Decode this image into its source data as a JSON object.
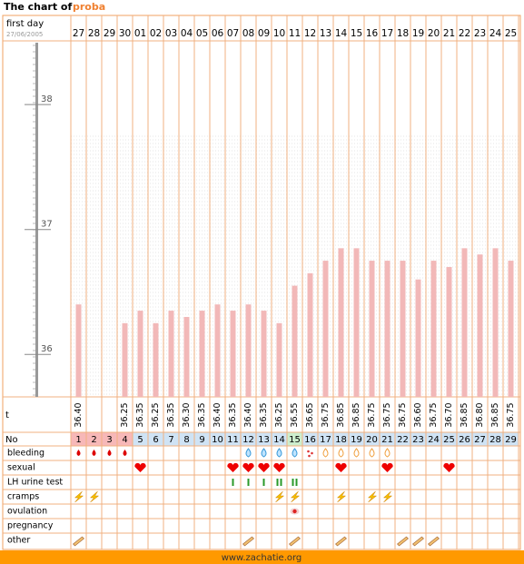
{
  "header": {
    "title": "The chart of",
    "name": "proba"
  },
  "chart_data": {
    "type": "bar",
    "first_day_label": "first day",
    "first_day": "27/06/2005",
    "categories": [
      "27",
      "28",
      "29",
      "30",
      "01",
      "02",
      "03",
      "04",
      "05",
      "06",
      "07",
      "08",
      "09",
      "10",
      "11",
      "12",
      "13",
      "14",
      "15",
      "16",
      "17",
      "18",
      "19",
      "20",
      "21",
      "22",
      "23",
      "24",
      "25"
    ],
    "temperature_label": "t",
    "values": [
      36.4,
      null,
      null,
      36.25,
      36.35,
      36.25,
      36.35,
      36.3,
      36.35,
      36.4,
      36.35,
      36.4,
      36.35,
      36.25,
      36.55,
      36.65,
      36.75,
      36.85,
      36.85,
      36.75,
      36.75,
      36.75,
      36.6,
      36.75,
      36.7,
      36.85,
      36.8,
      36.85,
      36.75
    ],
    "value_labels": [
      "36.40",
      null,
      null,
      "36.25",
      "36.35",
      "36.25",
      "36.35",
      "36.30",
      "36.35",
      "36.40",
      "36.35",
      "36.40",
      "36.35",
      "36.25",
      "36.55",
      "36.65",
      "36.75",
      "36.85",
      "36.85",
      "36.75",
      "36.75",
      "36.75",
      "36.60",
      "36.75",
      "36.70",
      "36.85",
      "36.80",
      "36.85",
      "36.75"
    ],
    "color": "#f2b8b8",
    "ylim": [
      35.66,
      38.51
    ],
    "yticks": [
      36,
      37,
      38
    ]
  },
  "table": {
    "day_label": "No",
    "days": [
      1,
      2,
      3,
      4,
      5,
      6,
      7,
      8,
      9,
      10,
      11,
      12,
      13,
      14,
      15,
      16,
      17,
      18,
      19,
      20,
      21,
      22,
      23,
      24,
      25,
      26,
      27,
      28,
      29
    ],
    "rows": [
      "bleeding",
      "sexual",
      "LH urine test",
      "cramps",
      "ovulation",
      "pregnancy",
      "other"
    ]
  },
  "footer": "www.zachatie.org"
}
